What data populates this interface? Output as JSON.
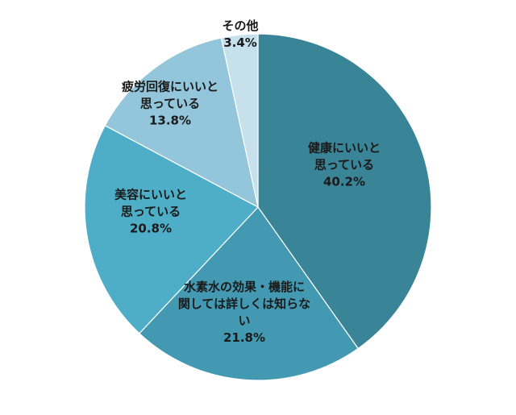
{
  "chart_data": {
    "type": "pie",
    "start_angle_deg": 0,
    "direction": "clockwise",
    "slices": [
      {
        "label": [
          "健康にいいと",
          "思っている"
        ],
        "value": 40.2,
        "value_label": "40.2%",
        "color": "#3a8498"
      },
      {
        "label": [
          "水素水の効果・機能に",
          "関しては詳しくは知らな",
          "い"
        ],
        "value": 21.8,
        "value_label": "21.8%",
        "color": "#4399b1"
      },
      {
        "label": [
          "美容にいいと",
          "思っている"
        ],
        "value": 20.8,
        "value_label": "20.8%",
        "color": "#4eaec8"
      },
      {
        "label": [
          "疲労回復にいいと",
          "思っている"
        ],
        "value": 13.8,
        "value_label": "13.8%",
        "color": "#93c6da"
      },
      {
        "label": [
          "その他"
        ],
        "value": 3.4,
        "value_label": "3.4%",
        "color": "#c7e1ec"
      }
    ]
  }
}
